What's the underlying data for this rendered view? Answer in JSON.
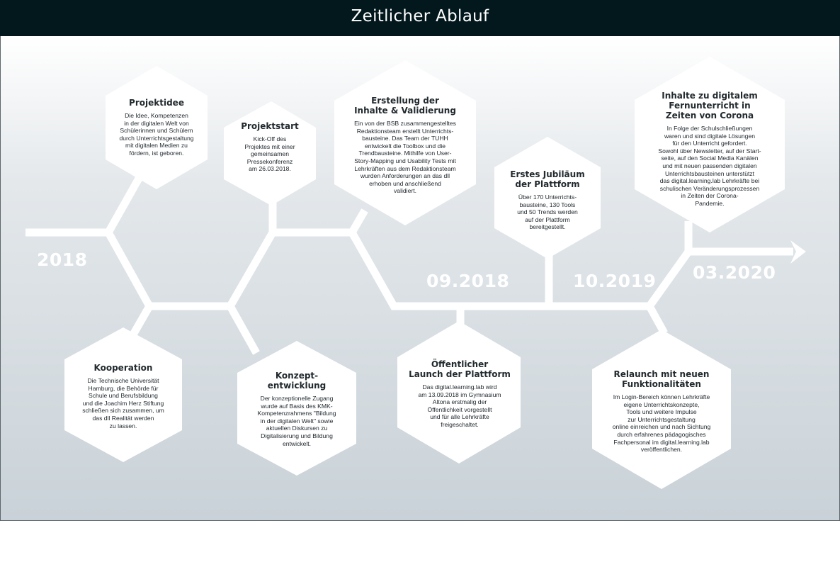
{
  "header": {
    "title": "Zeitlicher Ablauf"
  },
  "years": {
    "y2018": "2018",
    "y0918": "09.2018",
    "y1019": "10.2019",
    "y0320": "03.2020"
  },
  "events": {
    "projektidee": {
      "title": "Projektidee",
      "desc": "Die Idee, Kompetenzen\nin der digitalen Welt von\nSchülerinnen und Schülern\ndurch Unterrichtsgestaltung\nmit digitalen Medien zu\nfördern, ist geboren."
    },
    "projektstart": {
      "title": "Projektstart",
      "desc": "Kick-Off des\nProjektes mit einer\ngemeinsamen\nPressekonferenz\nam 26.03.2018."
    },
    "erstellung": {
      "title": "Erstellung der\nInhalte & Validierung",
      "desc": "Ein von der BSB zusammengestelltes\nRedaktionsteam erstellt Unterrichts-\nbausteine. Das Team der TUHH\nentwickelt die Toolbox und die\nTrendbausteine. Mithilfe von User-\nStory-Mapping und Usability Tests mit\nLehrkräften aus dem Redaktionsteam\nwurden Anforderungen an das dll\nerhoben und anschließend\nvalidiert."
    },
    "jubilaeum": {
      "title": "Erstes Jubiläum\nder Plattform",
      "desc": "Über 170 Unterrichts-\nbausteine, 130 Tools\nund 50 Trends werden\nauf der Plattform\nbereitgestellt."
    },
    "corona": {
      "title": "Inhalte zu digitalem\nFernunterricht in\nZeiten von Corona",
      "desc": "In Folge der Schulschließungen\nwaren und sind digitale Lösungen\nfür den Unterricht gefordert.\nSowohl über Newsletter, auf der Start-\nseite, auf den Social Media Kanälen\nund mit neuen passenden digitalen\nUnterrichtsbausteinen unterstützt\ndas digital.learning.lab Lehrkräfte bei\nschulischen Veränderungsprozessen\nin Zeiten der Corona-\nPandemie."
    },
    "kooperation": {
      "title": "Kooperation",
      "desc": "Die Technische Universität\nHamburg, die Behörde für\nSchule und Berufsbildung\nund die Joachim Herz Stiftung\nschließen sich zusammen, um\ndas dll Realität werden\nzu lassen."
    },
    "konzept": {
      "title": "Konzept-\nentwicklung",
      "desc": "Der konzeptionelle Zugang\nwurde auf Basis des KMK-\nKompetenzrahmens \"Bildung\nin der digitalen Welt\" sowie\naktuellen Diskursen zu\nDigitalisierung und Bildung\nentwickelt."
    },
    "launch": {
      "title": "Öffentlicher\nLaunch der Plattform",
      "desc": "Das digital.learning.lab wird\nam 13.09.2018 im Gymnasium\nAltona erstmalig der\nÖffentlichkeit vorgestellt\nund für alle Lehrkräfte\nfreigeschaltet."
    },
    "relaunch": {
      "title": "Relaunch mit neuen\nFunktionalitäten",
      "desc": "Im Login-Bereich können Lehrkräfte\neigene Unterrichtskonzepte,\nTools  und weitere Impulse\nzur Unterrichtsgestaltung\nonline einreichen und nach Sichtung\ndurch erfahrenes pädagogisches\nFachpersonal im digital.learning.lab\nveröffentlichen."
    }
  }
}
